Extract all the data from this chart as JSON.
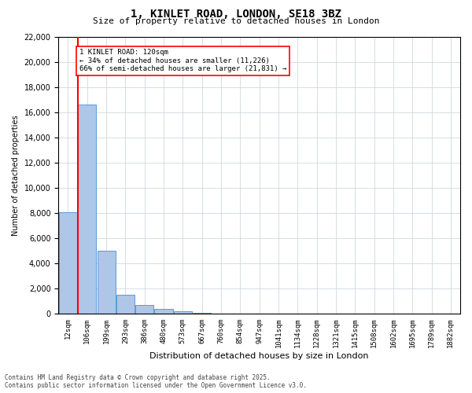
{
  "title": "1, KINLET ROAD, LONDON, SE18 3BZ",
  "subtitle": "Size of property relative to detached houses in London",
  "xlabel": "Distribution of detached houses by size in London",
  "ylabel": "Number of detached properties",
  "bins": [
    "12sqm",
    "106sqm",
    "199sqm",
    "293sqm",
    "386sqm",
    "480sqm",
    "573sqm",
    "667sqm",
    "760sqm",
    "854sqm",
    "947sqm",
    "1041sqm",
    "1134sqm",
    "1228sqm",
    "1321sqm",
    "1415sqm",
    "1508sqm",
    "1602sqm",
    "1695sqm",
    "1789sqm",
    "1882sqm"
  ],
  "values": [
    8100,
    16600,
    5000,
    1500,
    700,
    380,
    200,
    100,
    30,
    5,
    2,
    1,
    0,
    0,
    0,
    0,
    0,
    0,
    0,
    0,
    0
  ],
  "bar_color": "#aec6e8",
  "bar_edge_color": "#5b9bd5",
  "red_line_bin_index": 1,
  "annotation_text_line1": "1 KINLET ROAD: 120sqm",
  "annotation_text_line2": "← 34% of detached houses are smaller (11,226)",
  "annotation_text_line3": "66% of semi-detached houses are larger (21,831) →",
  "ylim": [
    0,
    22000
  ],
  "yticks": [
    0,
    2000,
    4000,
    6000,
    8000,
    10000,
    12000,
    14000,
    16000,
    18000,
    20000,
    22000
  ],
  "footer_line1": "Contains HM Land Registry data © Crown copyright and database right 2025.",
  "footer_line2": "Contains public sector information licensed under the Open Government Licence v3.0.",
  "background_color": "#ffffff",
  "grid_color": "#c8d0d8"
}
